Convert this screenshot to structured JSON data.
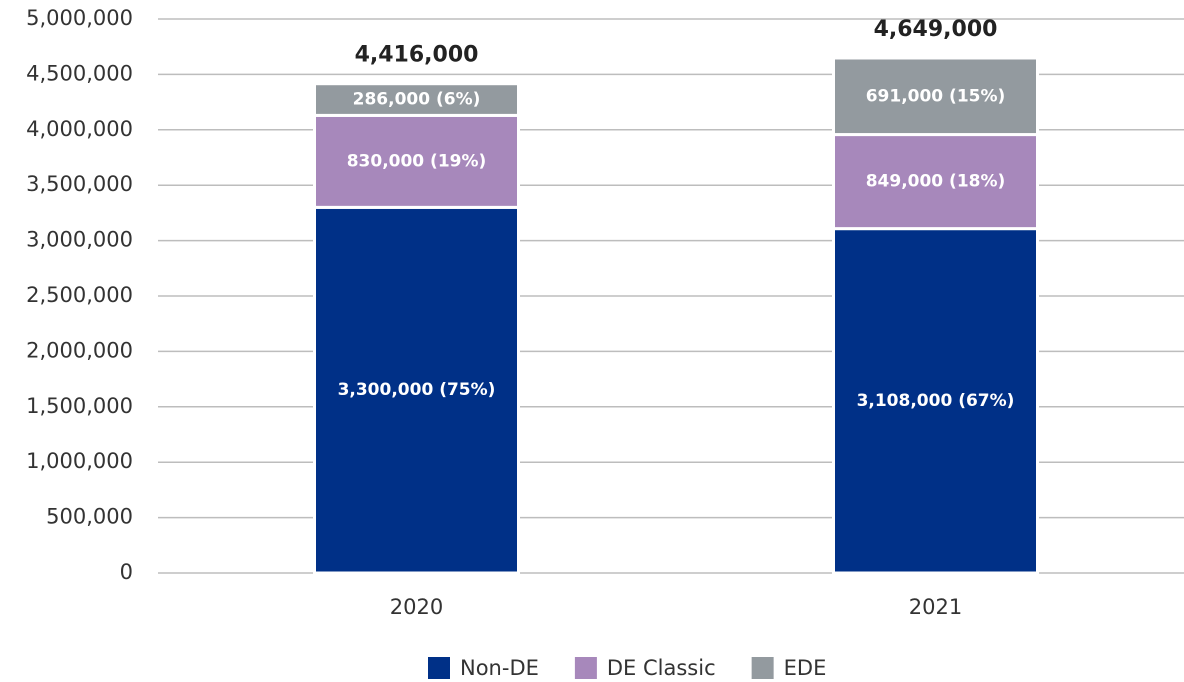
{
  "chart_data": {
    "type": "stacked_bar",
    "categories": [
      "2020",
      "2021"
    ],
    "series": [
      {
        "name": "Non-DE",
        "color": "#003087",
        "values": [
          3300000,
          3108000
        ],
        "value_labels": [
          "3,300,000 (75%)",
          "3,108,000 (67%)"
        ]
      },
      {
        "name": "DE Classic",
        "color": "#a788bb",
        "values": [
          830000,
          849000
        ],
        "value_labels": [
          "830,000 (19%)",
          "849,000 (18%)"
        ]
      },
      {
        "name": "EDE",
        "color": "#939a9f",
        "values": [
          286000,
          691000
        ],
        "value_labels": [
          "286,000 (6%)",
          "691,000 (15%)"
        ]
      }
    ],
    "totals": [
      4416000,
      4649000
    ],
    "total_labels": [
      "4,416,000",
      "4,649,000"
    ],
    "ylim": [
      0,
      5000000
    ],
    "yticks": [
      0,
      {
        "value": 500000,
        "label": "500,000"
      },
      {
        "value": 1000000,
        "label": "1,000,000"
      },
      {
        "value": 1500000,
        "label": "1,500,000"
      },
      {
        "value": 2000000,
        "label": "2,000,000"
      },
      {
        "value": 2500000,
        "label": "2,500,000"
      },
      {
        "value": 3000000,
        "label": "3,000,000"
      },
      {
        "value": 3500000,
        "label": "3,500,000"
      },
      {
        "value": 4000000,
        "label": "4,000,000"
      },
      {
        "value": 4500000,
        "label": "4,500,000"
      },
      {
        "value": 5000000,
        "label": "5,000,000"
      }
    ],
    "grid": true,
    "legend": "bottom"
  }
}
